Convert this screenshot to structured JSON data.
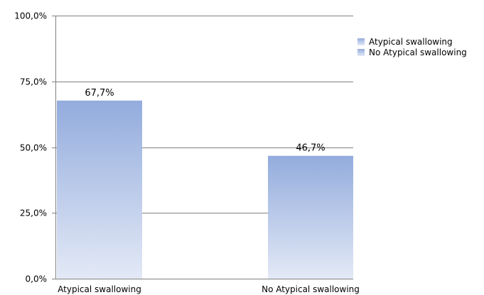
{
  "chart_data": {
    "type": "bar",
    "categories": [
      "Atypical swallowing",
      "No Atypical swallowing"
    ],
    "values": [
      67.7,
      46.7
    ],
    "data_labels": [
      "67,7%",
      "46,7%"
    ],
    "y_ticks": [
      "0,0%",
      "25,0%",
      "50,0%",
      "75,0%",
      "100,0%"
    ],
    "y_tick_values": [
      0,
      25,
      50,
      75,
      100
    ],
    "ylim": [
      0,
      100
    ],
    "title": "",
    "xlabel": "",
    "ylabel": "",
    "grid": true,
    "legend": {
      "placement": "top-right",
      "entries": [
        "Atypical swallowing",
        "No Atypical swallowing"
      ]
    },
    "colors": {
      "bar_top": "#93acdd",
      "bar_bottom": "#e3e9f6",
      "grid": "#808080",
      "axis": "#808080"
    }
  }
}
